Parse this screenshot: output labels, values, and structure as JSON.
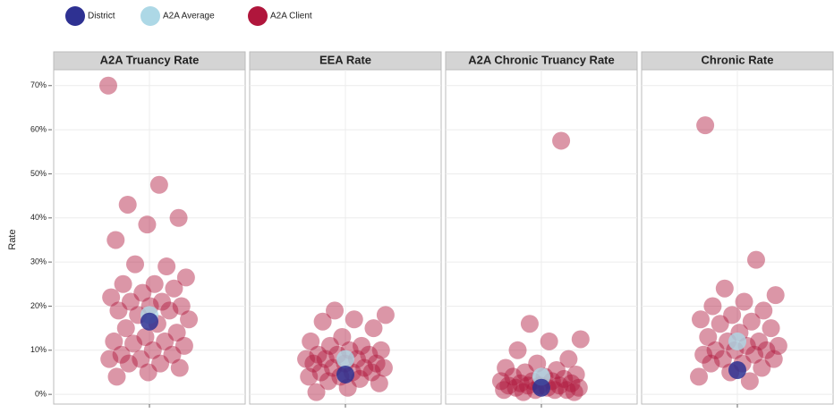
{
  "chart_data": {
    "type": "scatter",
    "y_label": "Rate",
    "ylim": [
      -2.2,
      73.6
    ],
    "yticks": [
      {
        "value": 0,
        "label": "0%"
      },
      {
        "value": 10,
        "label": "10%"
      },
      {
        "value": 20,
        "label": "20%"
      },
      {
        "value": 30,
        "label": "30%"
      },
      {
        "value": 40,
        "label": "40%"
      },
      {
        "value": 50,
        "label": "50%"
      },
      {
        "value": 60,
        "label": "60%"
      },
      {
        "value": 70,
        "label": "70%"
      }
    ],
    "grid": true,
    "legend": "top-left",
    "facets": [
      "A2A Truancy Rate",
      "EEA Rate",
      "A2A Chronic Truancy Rate",
      "Chronic Rate"
    ],
    "series": [
      {
        "name": "District",
        "color": "#2e3192",
        "values": [
          16.5,
          4.5,
          1.5,
          5.5
        ]
      },
      {
        "name": "A2A Average",
        "color": "#add8e6",
        "values": [
          18,
          8,
          4,
          12
        ]
      },
      {
        "name": "A2A Client",
        "color": "#b0163c",
        "values": [
          [
            70,
            47.5,
            43,
            40,
            38.5,
            35,
            29,
            29.5,
            26.5,
            25,
            25,
            24,
            23,
            22,
            21,
            21,
            20,
            20,
            19,
            19,
            18,
            17,
            16,
            15,
            14,
            13,
            12,
            12,
            11.5,
            11,
            10,
            9,
            9,
            8,
            8,
            7,
            7,
            6,
            5,
            4
          ],
          [
            19,
            18,
            17,
            16.5,
            15,
            13,
            12,
            11,
            11,
            10,
            10,
            9,
            9,
            9,
            8,
            8,
            8,
            7,
            7,
            7,
            6,
            6,
            6,
            5,
            5,
            5,
            4,
            4,
            3.5,
            3,
            2.5,
            1.5,
            0.5
          ],
          [
            57.5,
            16,
            12.5,
            12,
            10,
            8,
            7,
            6,
            5.5,
            5,
            4.5,
            4,
            4,
            3.5,
            3,
            3,
            3,
            2.5,
            2.5,
            2,
            2,
            2,
            2,
            1.5,
            1.5,
            1.5,
            1,
            1,
            1,
            1,
            0.5,
            0.5
          ],
          [
            61,
            30.5,
            24,
            22.5,
            21,
            20,
            19,
            18,
            17,
            16.5,
            16,
            15,
            14,
            13,
            12,
            12,
            11,
            11,
            10,
            10,
            10,
            9,
            9,
            8,
            8,
            7,
            7,
            6,
            5,
            4,
            3
          ]
        ]
      }
    ]
  }
}
